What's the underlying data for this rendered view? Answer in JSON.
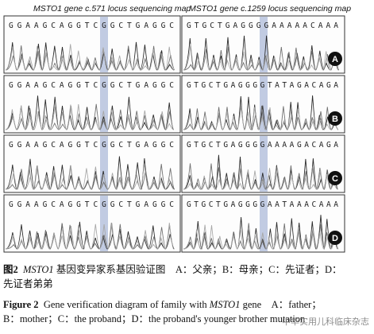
{
  "figure": {
    "left_title": "MSTO1 gene c.571 locus sequencing map",
    "right_title": "MSTO1 gene c.1259 locus sequencing map",
    "rows": [
      {
        "label": "A",
        "left_seq": "GGAAGCAGGTCGGCTGAGGC",
        "right_seq": "GTGCTGAGGGGAAAAACAAA"
      },
      {
        "label": "B",
        "left_seq": "GGAAGCAGGTCGGCTGAGGC",
        "right_seq": "GTGCTGAGGGGTATAGACAGA"
      },
      {
        "label": "C",
        "left_seq": "GGAAGCAGGTCGGCTGAGGC",
        "right_seq": "GTGCTGAGGGGAAAAGACAGA"
      },
      {
        "label": "D",
        "left_seq": "GGAAGCAGGTCGGCTGAGGC",
        "right_seq": "GTGCTGAGGGGAATAAACAAA"
      }
    ]
  },
  "caption": {
    "cn_label": "图2",
    "cn_gene": "MSTO1",
    "cn_text": "基因变异家系基因验证图　A：父亲；B：母亲；C：先证者；D：",
    "cn_text2": "先证者弟弟",
    "en_label": "Figure 2",
    "en_text1": "Gene verification diagram of family with",
    "en_gene": "MSTO1",
    "en_text2": "gene　A：father；",
    "en_text3": "B：mother；C：the proband；D：the proband's younger brother mutation"
  },
  "watermark": "中华实用儿科临床杂志",
  "colors": {
    "trace_a": "#2a2a2a",
    "trace_b": "#707070",
    "trace_c": "#a8a8a8",
    "highlight": "#8fa3cc",
    "border": "#333333"
  }
}
